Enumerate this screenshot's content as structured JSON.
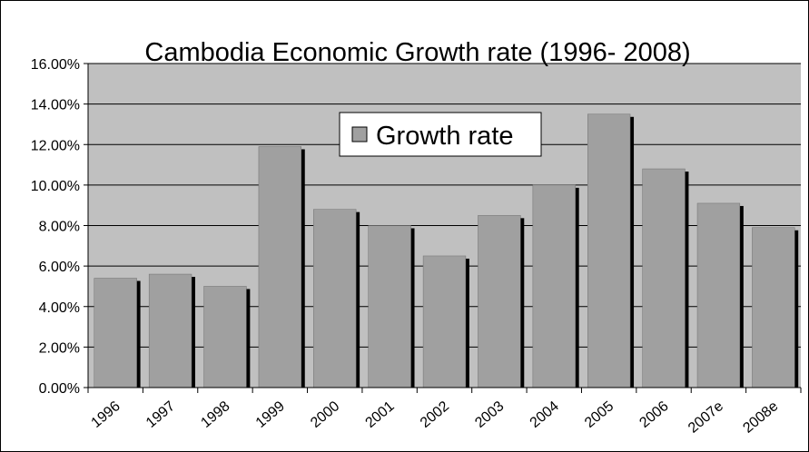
{
  "chart_data": {
    "type": "bar",
    "title": "Cambodia Economic Growth rate (1996- 2008)",
    "categories": [
      "1996",
      "1997",
      "1998",
      "1999",
      "2000",
      "2001",
      "2002",
      "2003",
      "2004",
      "2005",
      "2006",
      "2007e",
      "2008e"
    ],
    "series": [
      {
        "name": "Growth rate",
        "values": [
          5.4,
          5.6,
          5.0,
          11.9,
          8.8,
          8.0,
          6.5,
          8.5,
          10.0,
          13.5,
          10.8,
          9.1,
          7.9
        ]
      }
    ],
    "y_ticks": [
      "0.00%",
      "2.00%",
      "4.00%",
      "6.00%",
      "8.00%",
      "10.00%",
      "12.00%",
      "14.00%",
      "16.00%"
    ],
    "ylim": [
      0,
      16
    ],
    "grid": true,
    "legend_position": "upper-center",
    "colors": {
      "plot_background": "#c0c0c0",
      "bar_fill": "#a0a0a0",
      "bar_shadow": "#000000",
      "gridline": "#000000"
    }
  }
}
